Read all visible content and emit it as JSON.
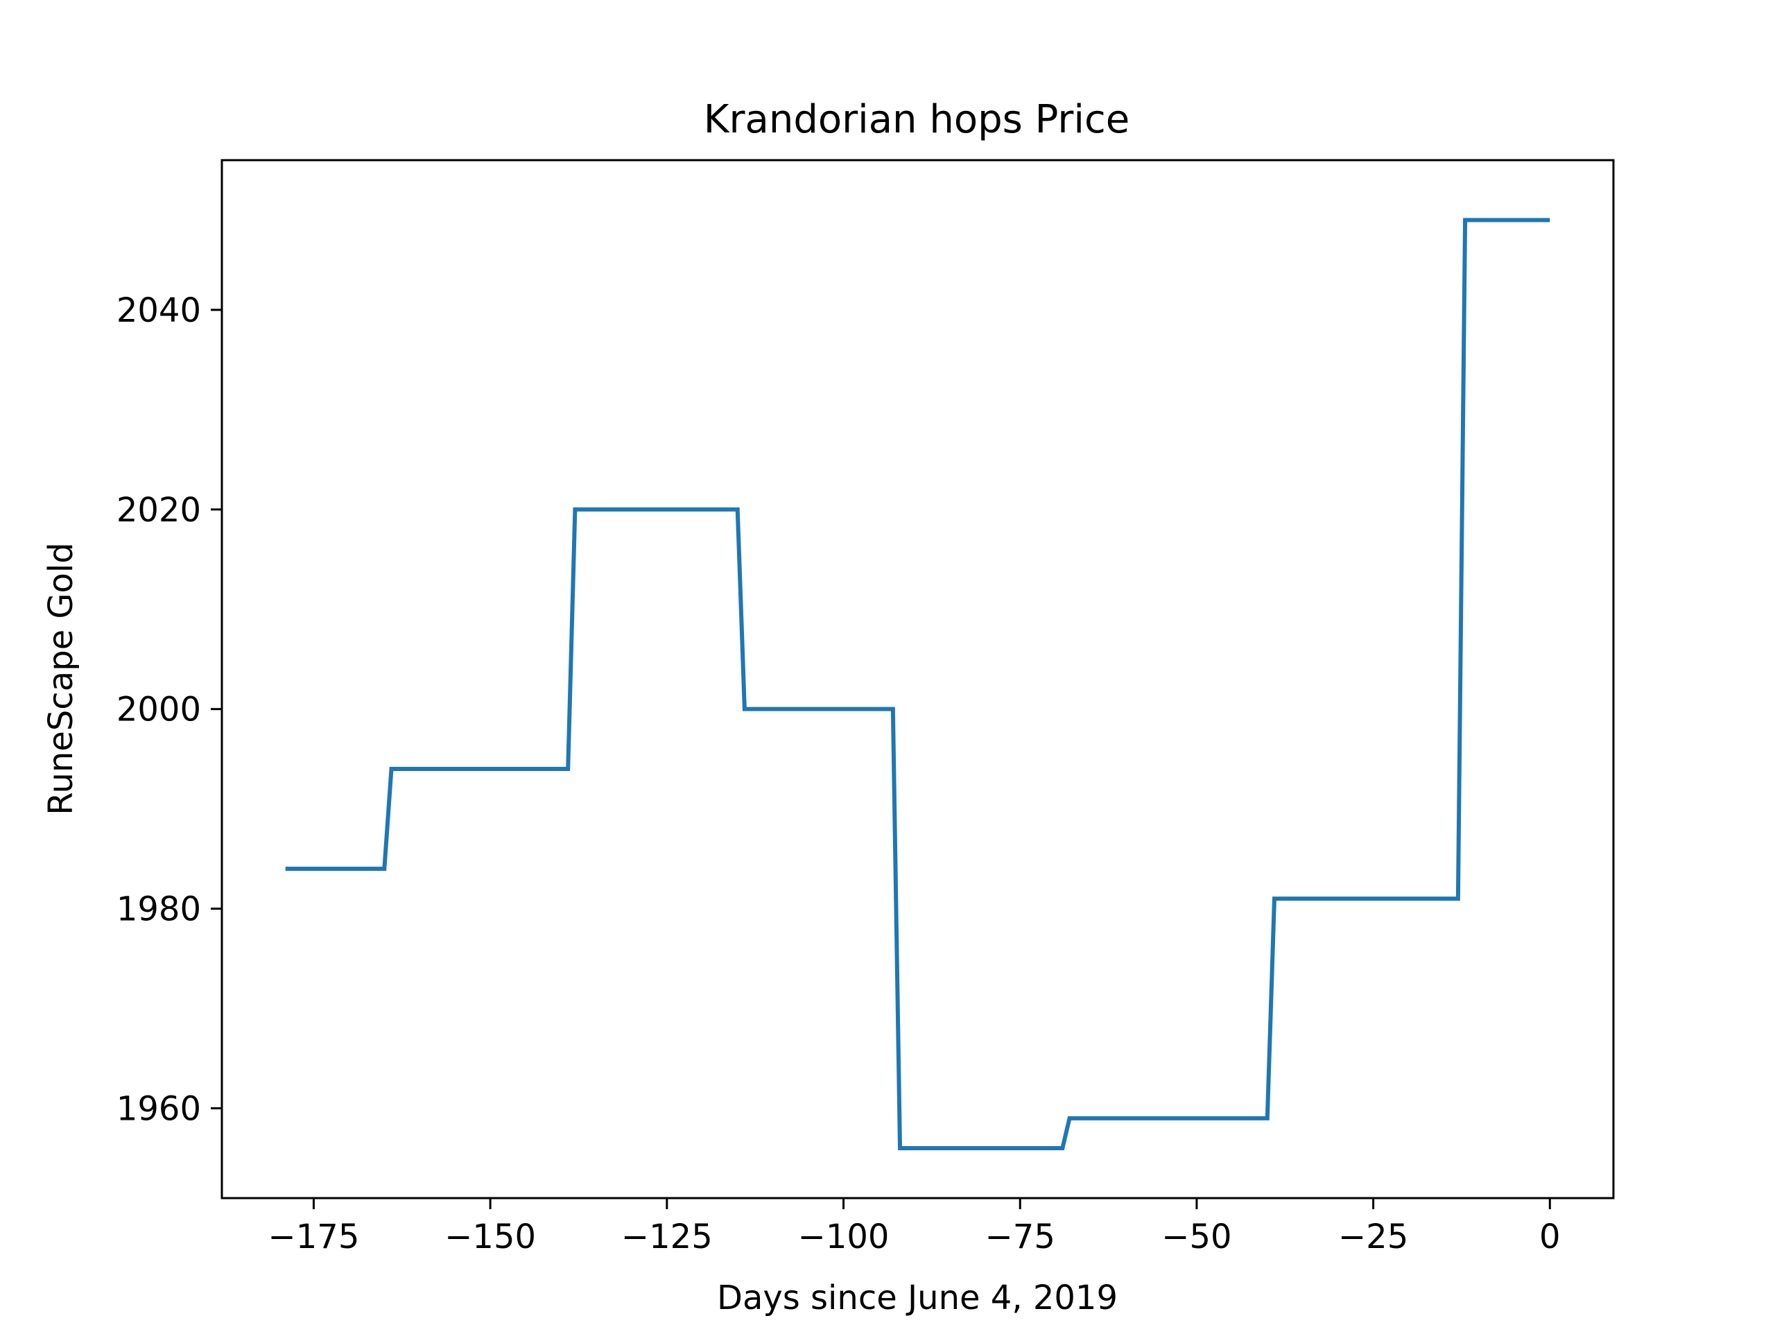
{
  "chart_data": {
    "type": "line",
    "title": "Krandorian hops Price",
    "xlabel": "Days since June 4, 2019",
    "ylabel": "RuneScape Gold",
    "xlim": [
      -188,
      9
    ],
    "ylim": [
      1951,
      2055
    ],
    "grid": false,
    "x_ticks": [
      -175,
      -150,
      -125,
      -100,
      -75,
      -50,
      -25,
      0
    ],
    "x_tick_labels": [
      "−175",
      "−150",
      "−125",
      "−100",
      "−75",
      "−50",
      "−25",
      "0"
    ],
    "y_ticks": [
      1960,
      1980,
      2000,
      2020,
      2040
    ],
    "y_tick_labels": [
      "1960",
      "1980",
      "2000",
      "2020",
      "2040"
    ],
    "series": [
      {
        "color": "#1f77b4",
        "x": [
          -179,
          -165,
          -164,
          -139,
          -138,
          -115,
          -114,
          -93,
          -92,
          -69,
          -68,
          -40,
          -39,
          -13,
          -12,
          0
        ],
        "y": [
          1984,
          1984,
          1994,
          1994,
          2020,
          2020,
          2000,
          2000,
          1956,
          1956,
          1959,
          1959,
          1981,
          1981,
          2049,
          2049
        ]
      }
    ]
  }
}
